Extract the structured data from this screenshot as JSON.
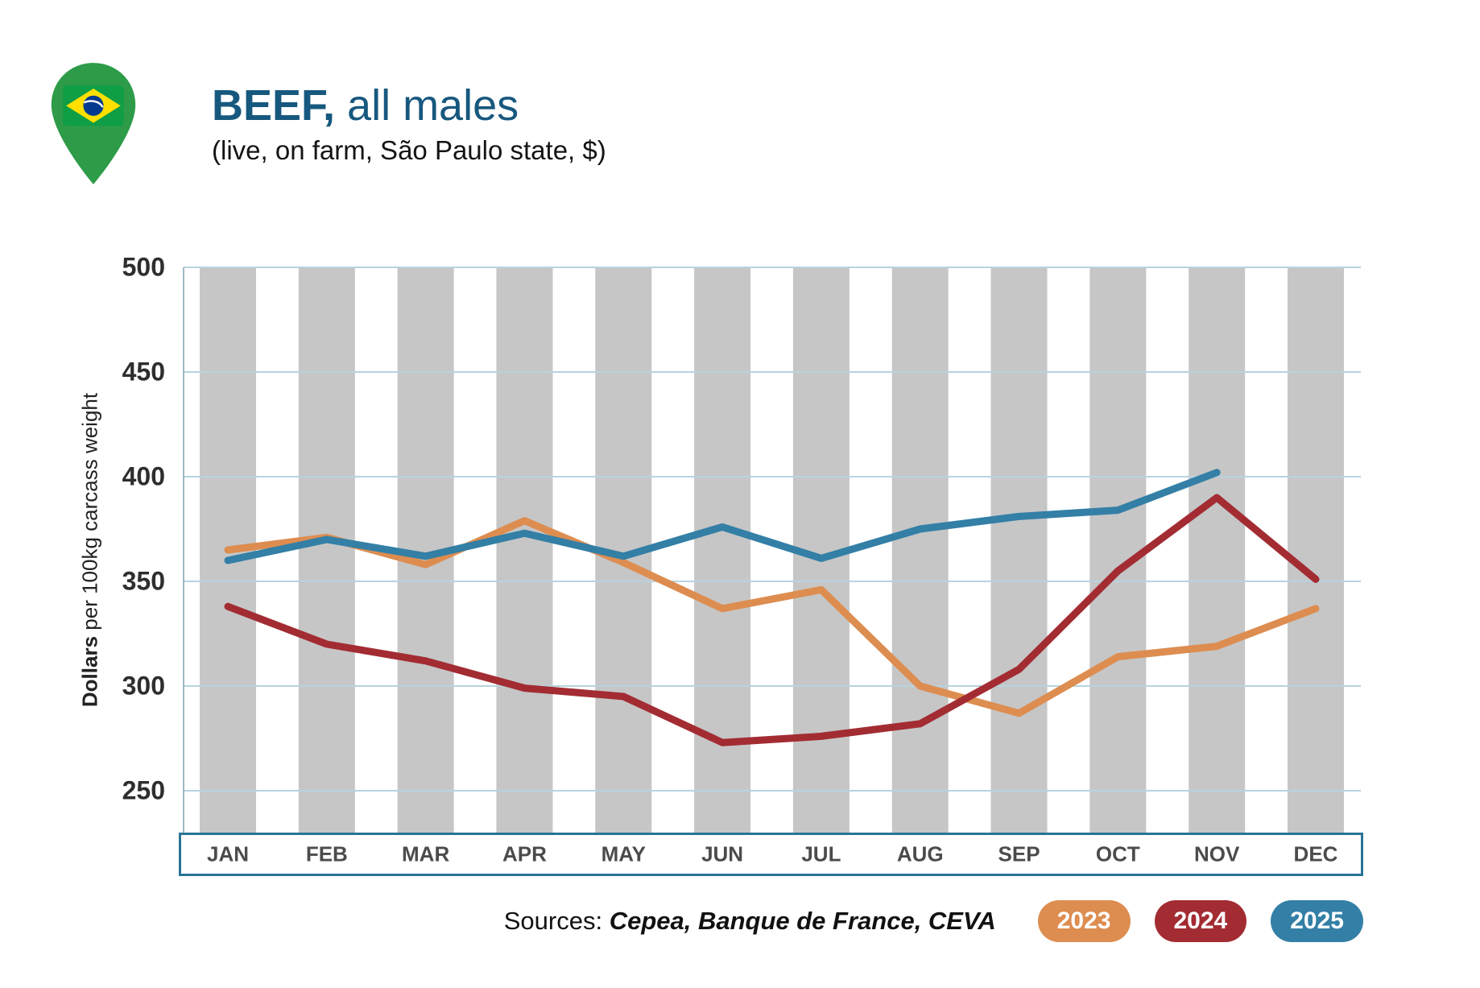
{
  "header": {
    "title_bold": "BEEF,",
    "title_regular": " all males",
    "subtitle": "(live, on farm, São Paulo state, $)"
  },
  "footer": {
    "sources_label": "Sources: ",
    "sources_value": "Cepea, Banque de France, CEVA"
  },
  "legend": [
    {
      "label": "2023",
      "color": "#dd8d50"
    },
    {
      "label": "2024",
      "color": "#a32c33"
    },
    {
      "label": "2025",
      "color": "#337fa6"
    }
  ],
  "chart_data": {
    "type": "line",
    "title": "BEEF, all males (live, on farm, São Paulo state, $)",
    "ylabel": "Dollars per 100kg carcass weight",
    "ylabel_bold": "Dollars",
    "ylabel_rest": " per 100kg carcass weight",
    "ylim": [
      250,
      500
    ],
    "yticks": [
      500,
      450,
      400,
      350,
      300,
      250
    ],
    "categories": [
      "JAN",
      "FEB",
      "MAR",
      "APR",
      "MAY",
      "JUN",
      "JUL",
      "AUG",
      "SEP",
      "OCT",
      "NOV",
      "DEC"
    ],
    "series": [
      {
        "name": "2023",
        "color": "#dd8d50",
        "values": [
          365,
          371,
          358,
          379,
          359,
          337,
          346,
          300,
          287,
          314,
          319,
          337
        ]
      },
      {
        "name": "2024",
        "color": "#a32c33",
        "values": [
          338,
          320,
          312,
          299,
          295,
          273,
          276,
          282,
          308,
          355,
          390,
          351
        ]
      },
      {
        "name": "2025",
        "color": "#337fa6",
        "values": [
          360,
          370,
          362,
          373,
          362,
          376,
          361,
          375,
          381,
          384,
          402,
          null
        ]
      }
    ],
    "grid": true,
    "legend_position": "bottom-right",
    "stripe_color": "#c6c6c6",
    "gridline_color": "#b7d3df",
    "axis_line_color": "#9fb9c6",
    "axis_box_border_color": "#2a7495"
  }
}
